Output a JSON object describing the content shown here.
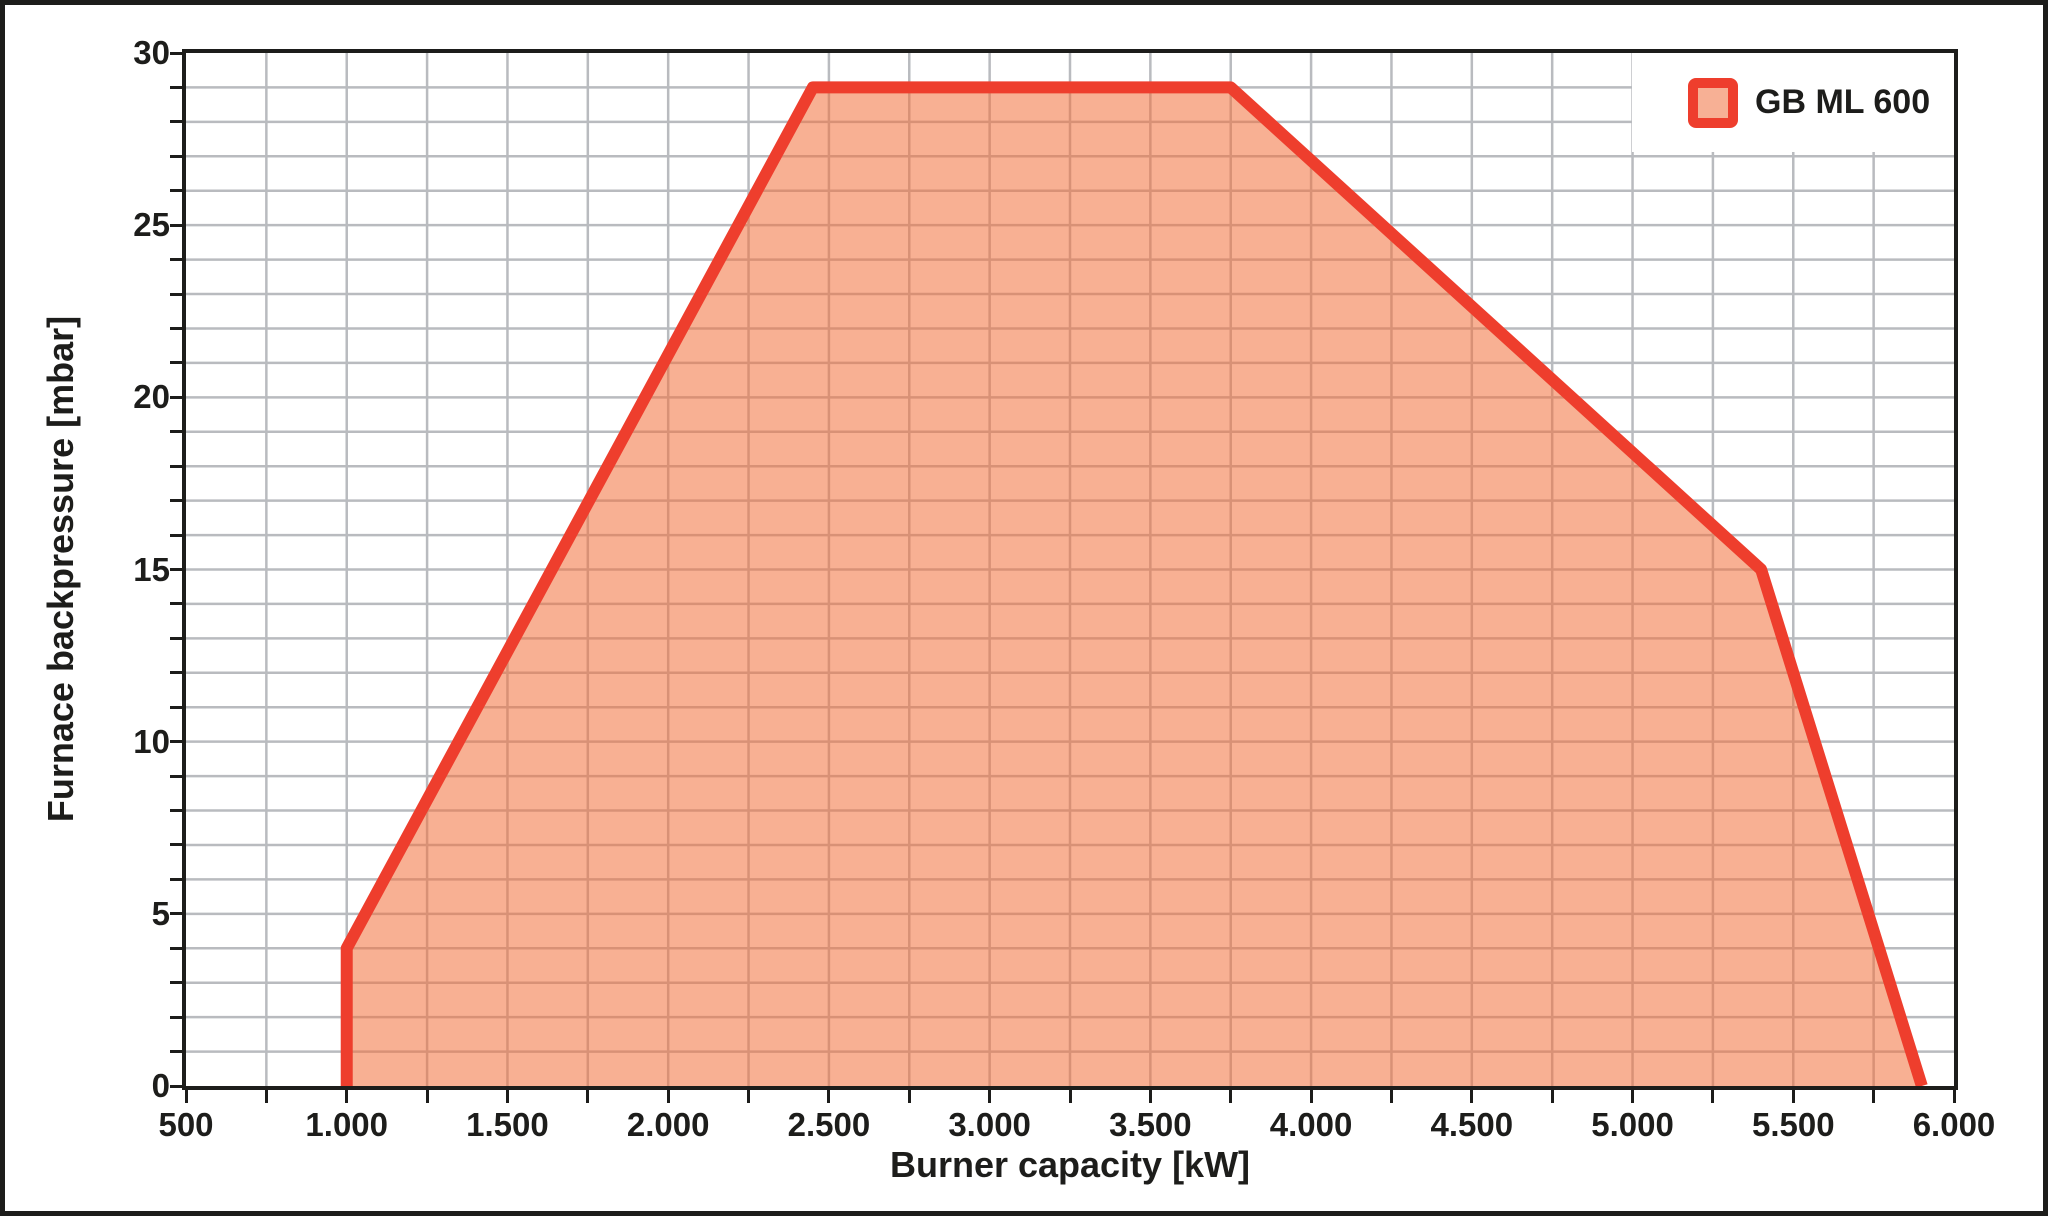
{
  "chart_data": {
    "type": "area",
    "title": "",
    "xlabel": "Burner capacity [kW]",
    "ylabel": "Furnace backpressure [mbar]",
    "xlim": [
      500,
      6000
    ],
    "ylim": [
      0,
      30
    ],
    "x_tick_values": [
      500,
      1000,
      1500,
      2000,
      2500,
      3000,
      3500,
      4000,
      4500,
      5000,
      5500,
      6000
    ],
    "x_tick_labels": [
      "500",
      "1.000",
      "1.500",
      "2.000",
      "2.500",
      "3.000",
      "3.500",
      "4.000",
      "4.500",
      "5.000",
      "5.500",
      "6.000"
    ],
    "x_minor_tick_step": 250,
    "y_tick_values": [
      0,
      5,
      10,
      15,
      20,
      25,
      30
    ],
    "y_tick_labels": [
      "0",
      "5",
      "10",
      "15",
      "20",
      "25",
      "30"
    ],
    "y_minor_tick_step": 1,
    "grid": {
      "visible": true,
      "minor_x_step_kw": 250,
      "minor_y_step_mbar": 1
    },
    "legend": {
      "label": "GB ML 600",
      "position": "top-right"
    },
    "series": [
      {
        "name": "GB ML 600",
        "points_kw_mbar": [
          [
            1000,
            0
          ],
          [
            1000,
            4
          ],
          [
            2450,
            29
          ],
          [
            3750,
            29
          ],
          [
            5400,
            15
          ],
          [
            5900,
            0
          ]
        ],
        "outline_closed_along_baseline": true
      }
    ]
  },
  "colors": {
    "background": "#ffffff",
    "axis_frame": "#1d1d1b",
    "grid_line": "#b9bbbf",
    "series_line": "#ee3e2d",
    "series_fill": "rgba(242,111,59,0.55)",
    "legend_swatch_border": "#ee3e2d",
    "legend_swatch_fill": "#f7b095",
    "text": "#1d1d1b"
  }
}
